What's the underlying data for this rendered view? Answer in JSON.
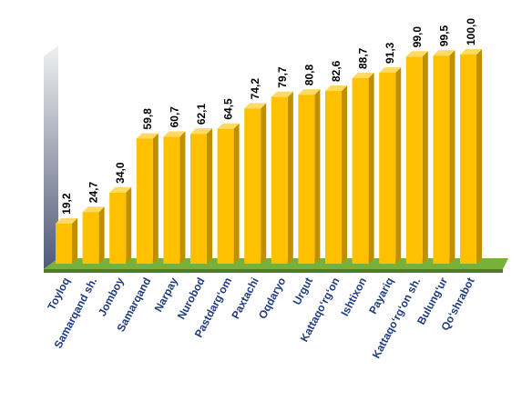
{
  "chart_data": {
    "type": "bar3d",
    "categories": [
      "Toyloq",
      "Samarqand sh.",
      "Jomboy",
      "Samarqand",
      "Narpay",
      "Nurobod",
      "Pastdarg‘om",
      "Paxtachi",
      "Oqdaryo",
      "Urgut",
      "Kattaqo‘rg‘on",
      "Ishtixon",
      "Payariq",
      "Kattaqo‘rg‘on sh.",
      "Bulung‘ur",
      "Qo‘shrabot"
    ],
    "values": [
      19.2,
      24.7,
      34.0,
      59.8,
      60.7,
      62.1,
      64.5,
      74.2,
      79.7,
      80.8,
      82.6,
      88.7,
      91.3,
      99.0,
      99.5,
      100.0
    ],
    "value_labels": [
      "19,2",
      "24,7",
      "34,0",
      "59,8",
      "60,7",
      "62,1",
      "64,5",
      "74,2",
      "79,7",
      "80,8",
      "82,6",
      "88,7",
      "91,3",
      "99,0",
      "99,5",
      "100,0"
    ],
    "color": "#ffc000"
  }
}
